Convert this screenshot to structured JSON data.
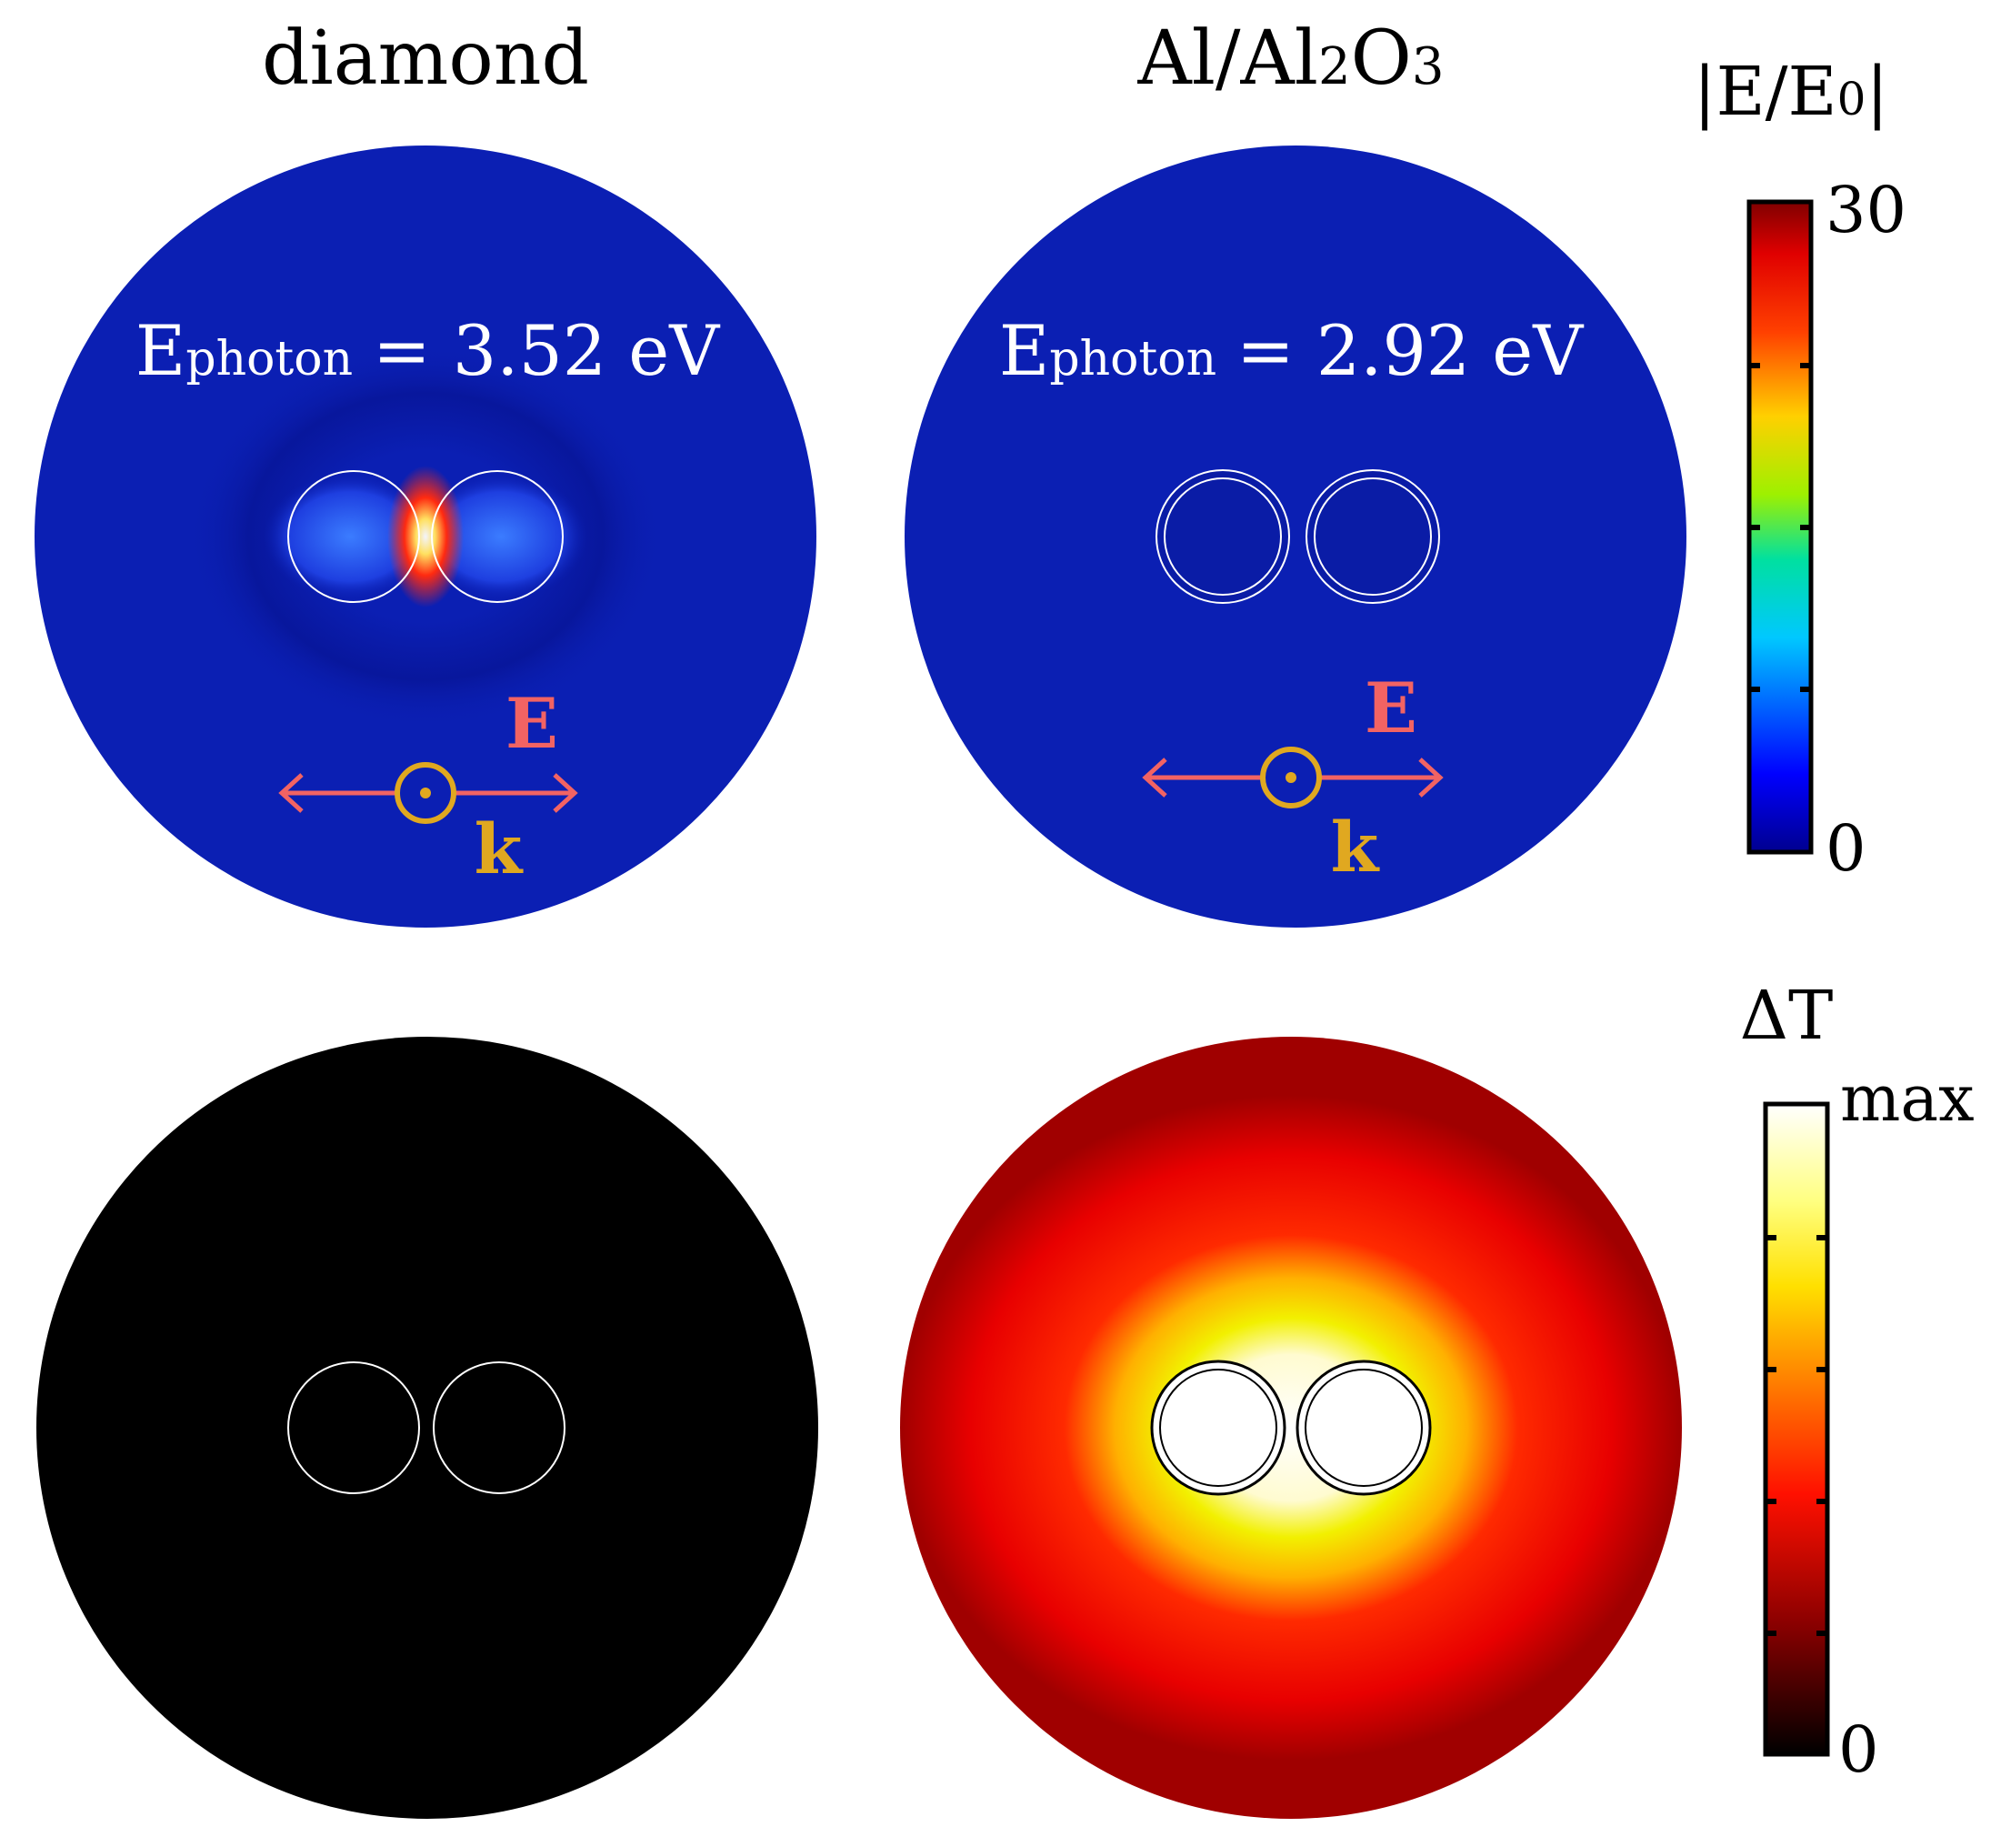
{
  "panels": {
    "left_title": "diamond",
    "right_title_parts": {
      "main": "Al/Al",
      "sub1": "2",
      "mid": "O",
      "sub2": "3"
    }
  },
  "photon_labels": {
    "left": {
      "symbol": "E",
      "sub": "photon",
      "value": "= 3.52 eV"
    },
    "right": {
      "symbol": "E",
      "sub": "photon",
      "value": "= 2.92 eV"
    }
  },
  "vectors": {
    "e_label": "E",
    "k_label": "k"
  },
  "colorbar_field": {
    "title_parts": {
      "pre": "|E/E",
      "sub": "0",
      "post": "|"
    },
    "max_label": "30",
    "min_label": "0"
  },
  "colorbar_temp": {
    "title": "ΔT",
    "max_label": "max",
    "min_label": "0"
  },
  "colors": {
    "field_bg": "#0b1fb3",
    "hot": "#e01010",
    "black": "#000000",
    "arrow_e": "#f26363",
    "k_gold": "#e0a820"
  }
}
